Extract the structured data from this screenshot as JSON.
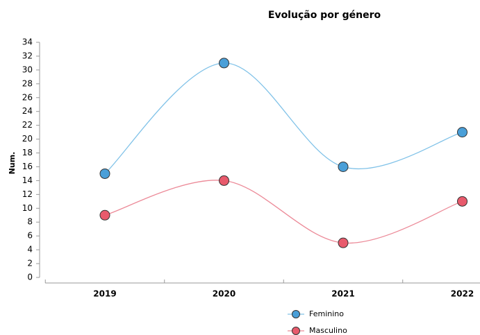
{
  "chart_data": {
    "type": "line",
    "title": "Evolução por género",
    "y_label": "Num.",
    "categories": [
      "2019",
      "2020",
      "2021",
      "2022"
    ],
    "series": [
      {
        "name": "Feminino",
        "color": "#4a9fd8",
        "line_color": "#80c2e8",
        "values": [
          15,
          31,
          16,
          21
        ]
      },
      {
        "name": "Masculino",
        "color": "#e85a6c",
        "line_color": "#ec8a98",
        "values": [
          9,
          14,
          5,
          11
        ]
      }
    ],
    "ylim": [
      0,
      34
    ],
    "yticks": [
      0,
      2,
      4,
      6,
      8,
      10,
      12,
      14,
      16,
      18,
      20,
      22,
      24,
      26,
      28,
      30,
      32,
      34
    ],
    "grid": false,
    "legend": "bottom"
  }
}
